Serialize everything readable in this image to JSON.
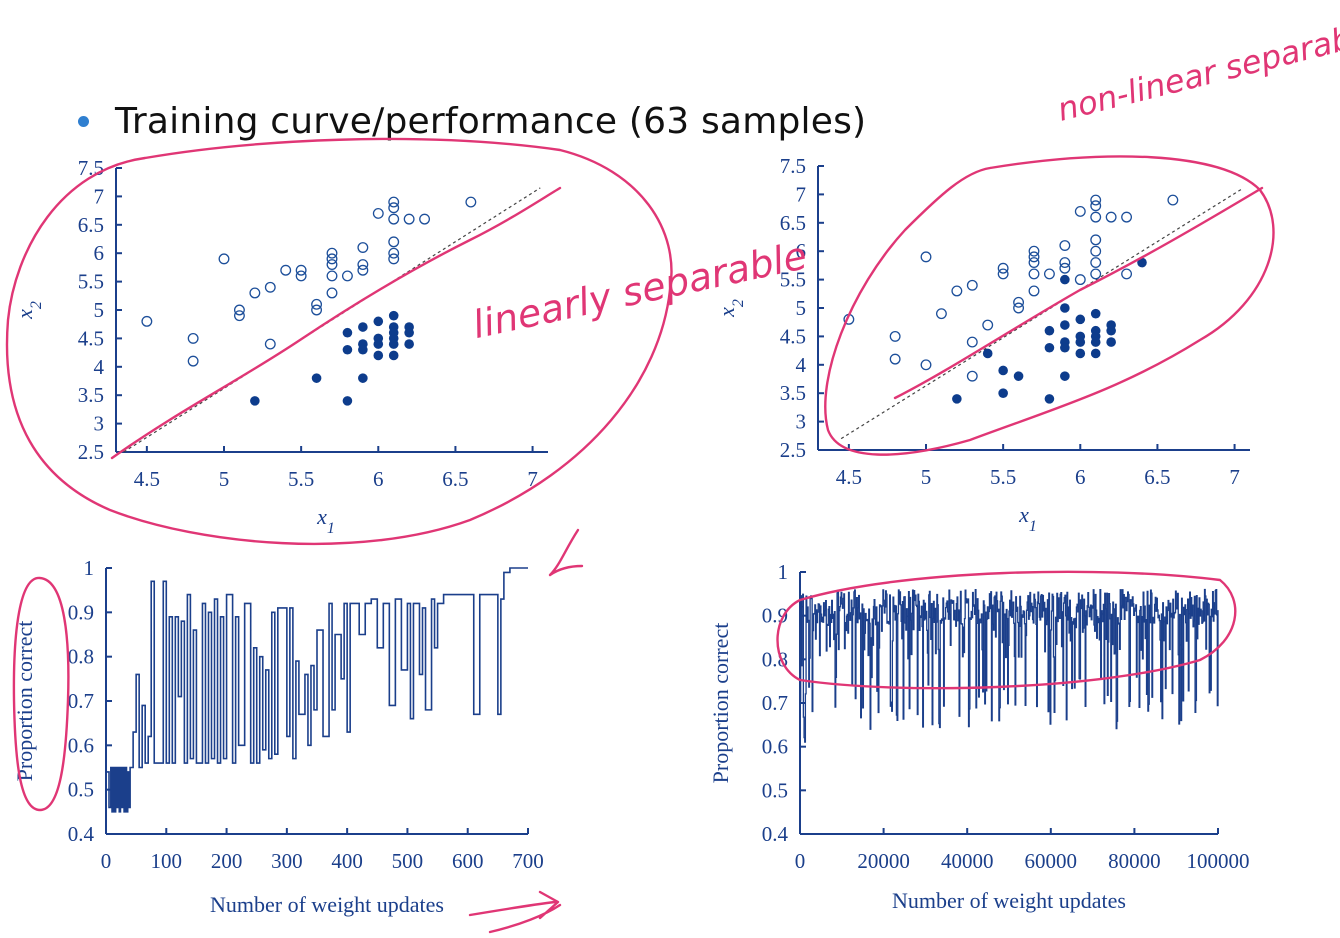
{
  "slide": {
    "bullet_text": "Training curve/performance (63 samples)",
    "accent_color": "#2f7fd0",
    "ink_color": "#e03675",
    "plot_color": "#1b3f8b"
  },
  "handwriting": {
    "left": "linearly separable",
    "right": "non-linear separable"
  },
  "chart_data": [
    {
      "type": "scatter",
      "xlabel": "x1",
      "ylabel": "x2",
      "xlim": [
        4.3,
        7.1
      ],
      "ylim": [
        2.5,
        7.5
      ],
      "xticks": [
        "4.5",
        "5",
        "5.5",
        "6",
        "6.5",
        "7"
      ],
      "yticks": [
        "2.5",
        "3",
        "3.5",
        "4",
        "4.5",
        "5",
        "5.5",
        "6",
        "6.5",
        "7",
        "7.5"
      ],
      "series": [
        {
          "marker": "open",
          "points": [
            [
              4.5,
              4.8
            ],
            [
              4.8,
              4.5
            ],
            [
              4.8,
              4.1
            ],
            [
              5.0,
              5.9
            ],
            [
              5.1,
              5.0
            ],
            [
              5.1,
              4.9
            ],
            [
              5.2,
              5.3
            ],
            [
              5.3,
              5.4
            ],
            [
              5.3,
              4.4
            ],
            [
              5.4,
              5.7
            ],
            [
              5.5,
              5.7
            ],
            [
              5.5,
              5.6
            ],
            [
              5.6,
              5.1
            ],
            [
              5.6,
              5.0
            ],
            [
              5.7,
              6.0
            ],
            [
              5.7,
              5.9
            ],
            [
              5.7,
              5.8
            ],
            [
              5.7,
              5.6
            ],
            [
              5.7,
              5.3
            ],
            [
              5.8,
              5.6
            ],
            [
              5.9,
              6.1
            ],
            [
              5.9,
              5.8
            ],
            [
              5.9,
              5.7
            ],
            [
              6.0,
              6.7
            ],
            [
              6.1,
              6.9
            ],
            [
              6.1,
              6.8
            ],
            [
              6.1,
              6.6
            ],
            [
              6.1,
              6.2
            ],
            [
              6.1,
              6.0
            ],
            [
              6.1,
              5.9
            ],
            [
              6.2,
              6.6
            ],
            [
              6.3,
              6.6
            ],
            [
              6.6,
              6.9
            ]
          ]
        },
        {
          "marker": "filled",
          "points": [
            [
              5.2,
              3.4
            ],
            [
              5.6,
              3.8
            ],
            [
              5.8,
              3.4
            ],
            [
              5.8,
              4.6
            ],
            [
              5.8,
              4.3
            ],
            [
              5.9,
              4.7
            ],
            [
              5.9,
              4.4
            ],
            [
              5.9,
              4.3
            ],
            [
              5.9,
              3.8
            ],
            [
              6.0,
              4.8
            ],
            [
              6.0,
              4.5
            ],
            [
              6.0,
              4.4
            ],
            [
              6.0,
              4.2
            ],
            [
              6.1,
              4.9
            ],
            [
              6.1,
              4.7
            ],
            [
              6.1,
              4.6
            ],
            [
              6.1,
              4.5
            ],
            [
              6.1,
              4.4
            ],
            [
              6.1,
              4.2
            ],
            [
              6.2,
              4.7
            ],
            [
              6.2,
              4.6
            ],
            [
              6.2,
              4.4
            ]
          ]
        }
      ],
      "decision_line": [
        [
          4.35,
          2.5
        ],
        [
          7.05,
          7.15
        ]
      ]
    },
    {
      "type": "scatter",
      "xlabel": "x1",
      "ylabel": "x2",
      "xlim": [
        4.3,
        7.1
      ],
      "ylim": [
        2.5,
        7.5
      ],
      "xticks": [
        "4.5",
        "5",
        "5.5",
        "6",
        "6.5",
        "7"
      ],
      "yticks": [
        "2.5",
        "3",
        "3.5",
        "4",
        "4.5",
        "5",
        "5.5",
        "6",
        "6.5",
        "7",
        "7.5"
      ],
      "series": [
        {
          "marker": "open",
          "points": [
            [
              4.5,
              4.8
            ],
            [
              4.8,
              4.5
            ],
            [
              4.8,
              4.1
            ],
            [
              5.0,
              5.9
            ],
            [
              5.0,
              4.0
            ],
            [
              5.1,
              4.9
            ],
            [
              5.2,
              5.3
            ],
            [
              5.3,
              5.4
            ],
            [
              5.3,
              4.4
            ],
            [
              5.3,
              3.8
            ],
            [
              5.4,
              4.7
            ],
            [
              5.5,
              5.7
            ],
            [
              5.5,
              5.6
            ],
            [
              5.6,
              5.1
            ],
            [
              5.6,
              5.0
            ],
            [
              5.7,
              6.0
            ],
            [
              5.7,
              5.9
            ],
            [
              5.7,
              5.8
            ],
            [
              5.7,
              5.6
            ],
            [
              5.7,
              5.3
            ],
            [
              5.8,
              5.6
            ],
            [
              5.9,
              6.1
            ],
            [
              5.9,
              5.8
            ],
            [
              5.9,
              5.7
            ],
            [
              6.0,
              6.7
            ],
            [
              6.0,
              5.5
            ],
            [
              6.1,
              6.9
            ],
            [
              6.1,
              6.8
            ],
            [
              6.1,
              6.6
            ],
            [
              6.1,
              6.2
            ],
            [
              6.1,
              6.0
            ],
            [
              6.1,
              5.8
            ],
            [
              6.1,
              5.6
            ],
            [
              6.2,
              6.6
            ],
            [
              6.3,
              6.6
            ],
            [
              6.3,
              5.6
            ],
            [
              6.6,
              6.9
            ]
          ]
        },
        {
          "marker": "filled",
          "points": [
            [
              5.2,
              3.4
            ],
            [
              5.4,
              4.2
            ],
            [
              5.5,
              3.9
            ],
            [
              5.5,
              3.5
            ],
            [
              5.6,
              3.8
            ],
            [
              5.8,
              3.4
            ],
            [
              5.8,
              4.6
            ],
            [
              5.8,
              4.3
            ],
            [
              5.9,
              5.5
            ],
            [
              5.9,
              5.0
            ],
            [
              5.9,
              4.7
            ],
            [
              5.9,
              4.4
            ],
            [
              5.9,
              4.3
            ],
            [
              5.9,
              3.8
            ],
            [
              6.0,
              4.8
            ],
            [
              6.0,
              4.5
            ],
            [
              6.0,
              4.4
            ],
            [
              6.0,
              4.2
            ],
            [
              6.1,
              4.9
            ],
            [
              6.1,
              4.6
            ],
            [
              6.1,
              4.5
            ],
            [
              6.1,
              4.4
            ],
            [
              6.1,
              4.2
            ],
            [
              6.2,
              4.7
            ],
            [
              6.2,
              4.6
            ],
            [
              6.2,
              4.4
            ],
            [
              6.4,
              5.8
            ]
          ]
        }
      ],
      "decision_line": [
        [
          4.45,
          2.7
        ],
        [
          7.05,
          7.1
        ]
      ]
    },
    {
      "type": "line",
      "xlabel": "Number of weight updates",
      "ylabel": "Proportion correct",
      "xlim": [
        0,
        700
      ],
      "ylim": [
        0.4,
        1.0
      ],
      "xticks": [
        "0",
        "100",
        "200",
        "300",
        "400",
        "500",
        "600",
        "700"
      ],
      "yticks": [
        "0.4",
        "0.5",
        "0.6",
        "0.7",
        "0.8",
        "0.9",
        "1"
      ],
      "x": [
        0,
        5,
        8,
        10,
        12,
        14,
        16,
        18,
        20,
        22,
        24,
        26,
        28,
        30,
        32,
        34,
        36,
        38,
        40,
        45,
        50,
        55,
        60,
        65,
        70,
        75,
        80,
        95,
        100,
        105,
        110,
        115,
        120,
        125,
        130,
        135,
        140,
        145,
        150,
        160,
        165,
        170,
        175,
        180,
        185,
        190,
        195,
        200,
        210,
        215,
        220,
        230,
        240,
        245,
        250,
        255,
        260,
        265,
        270,
        275,
        280,
        285,
        290,
        300,
        305,
        310,
        315,
        320,
        330,
        335,
        340,
        345,
        350,
        360,
        370,
        375,
        380,
        390,
        395,
        400,
        405,
        410,
        420,
        430,
        440,
        450,
        460,
        470,
        480,
        490,
        500,
        505,
        510,
        520,
        525,
        530,
        540,
        545,
        550,
        560,
        570,
        580,
        590,
        600,
        610,
        620,
        630,
        640,
        650,
        655,
        660,
        665,
        670,
        680,
        690,
        700
      ],
      "values": [
        0.54,
        0.46,
        0.55,
        0.45,
        0.55,
        0.45,
        0.55,
        0.46,
        0.55,
        0.45,
        0.55,
        0.46,
        0.55,
        0.45,
        0.55,
        0.45,
        0.54,
        0.46,
        0.55,
        0.63,
        0.76,
        0.55,
        0.69,
        0.56,
        0.62,
        0.97,
        0.56,
        0.97,
        0.56,
        0.89,
        0.56,
        0.89,
        0.71,
        0.88,
        0.56,
        0.94,
        0.57,
        0.86,
        0.56,
        0.92,
        0.56,
        0.9,
        0.57,
        0.93,
        0.56,
        0.89,
        0.57,
        0.94,
        0.56,
        0.89,
        0.6,
        0.92,
        0.56,
        0.82,
        0.56,
        0.8,
        0.59,
        0.77,
        0.57,
        0.9,
        0.58,
        0.91,
        0.91,
        0.62,
        0.91,
        0.57,
        0.79,
        0.67,
        0.76,
        0.6,
        0.78,
        0.68,
        0.86,
        0.62,
        0.92,
        0.68,
        0.85,
        0.75,
        0.92,
        0.63,
        0.92,
        0.92,
        0.85,
        0.92,
        0.93,
        0.82,
        0.92,
        0.69,
        0.93,
        0.77,
        0.92,
        0.66,
        0.92,
        0.76,
        0.91,
        0.68,
        0.93,
        0.82,
        0.92,
        0.94,
        0.94,
        0.94,
        0.94,
        0.94,
        0.67,
        0.94,
        0.94,
        0.94,
        0.67,
        0.93,
        0.99,
        0.99,
        1.0,
        1.0,
        1.0,
        1.0
      ]
    },
    {
      "type": "line",
      "xlabel": "Number of weight updates",
      "ylabel": "Proportion correct",
      "xlim": [
        0,
        100000
      ],
      "ylim": [
        0.4,
        1.0
      ],
      "xticks": [
        "0",
        "20000",
        "40000",
        "60000",
        "80000",
        "100000"
      ],
      "yticks": [
        "0.4",
        "0.5",
        "0.6",
        "0.7",
        "0.8",
        "0.9",
        "1"
      ],
      "pattern": "noisy oscillation mostly between 0.88 and 0.96 with frequent dips to 0.65-0.75",
      "x_range": [
        0,
        100000
      ],
      "values_range": [
        0.54,
        0.96
      ]
    }
  ]
}
